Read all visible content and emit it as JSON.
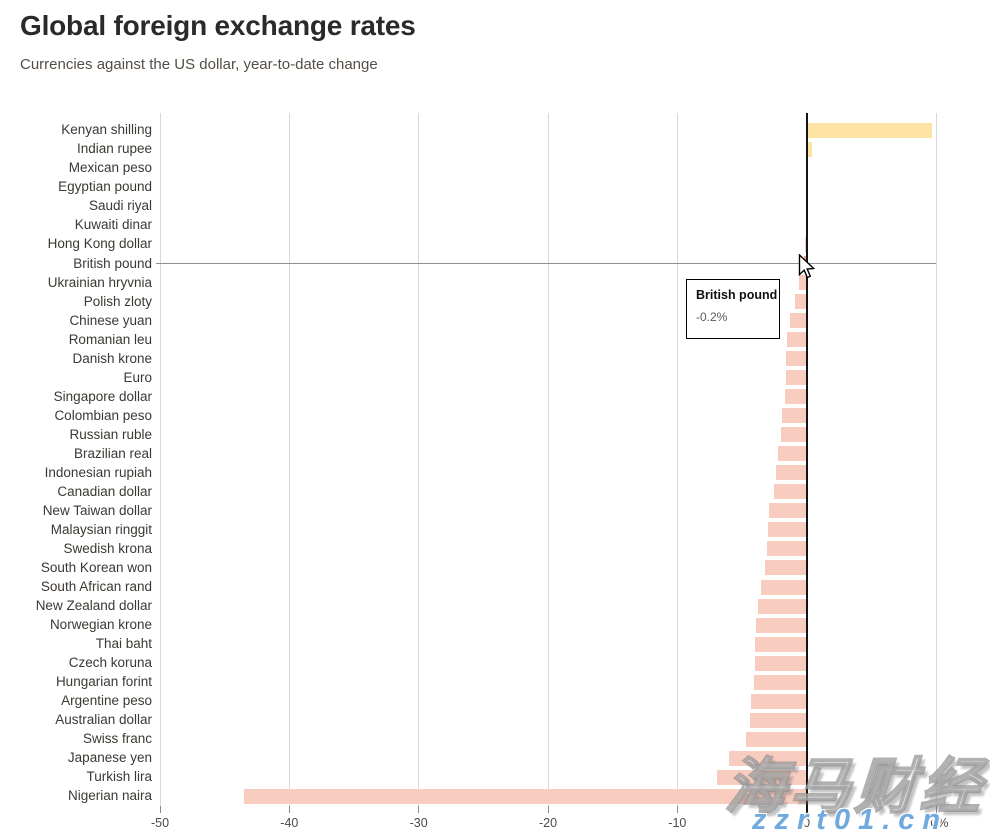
{
  "header": {
    "title": "Global foreign exchange rates",
    "subtitle": "Currencies against the US dollar, year-to-date change"
  },
  "chart_data": {
    "type": "bar",
    "orientation": "horizontal",
    "title": "Global foreign exchange rates",
    "subtitle": "Currencies against the US dollar, year-to-date change",
    "xlim": [
      -50,
      10
    ],
    "x_ticks": [
      -50,
      -40,
      -30,
      -20,
      -10,
      0,
      10
    ],
    "x_tick_labels": [
      "-50",
      "-40",
      "-30",
      "-20",
      "-10",
      "0",
      "10%"
    ],
    "grid": "vertical",
    "legend": "none",
    "categories": [
      "Kenyan shilling",
      "Indian rupee",
      "Mexican peso",
      "Egyptian pound",
      "Saudi riyal",
      "Kuwaiti dinar",
      "Hong Kong dollar",
      "British pound",
      "Ukrainian hryvnia",
      "Polish zloty",
      "Chinese yuan",
      "Romanian leu",
      "Danish krone",
      "Euro",
      "Singapore dollar",
      "Colombian peso",
      "Russian ruble",
      "Brazilian real",
      "Indonesian rupiah",
      "Canadian dollar",
      "New Taiwan dollar",
      "Malaysian ringgit",
      "Swedish krona",
      "South Korean won",
      "South African rand",
      "New Zealand dollar",
      "Norwegian krone",
      "Thai baht",
      "Czech koruna",
      "Hungarian forint",
      "Argentine peso",
      "Australian dollar",
      "Swiss franc",
      "Japanese yen",
      "Turkish lira",
      "Nigerian naira"
    ],
    "values": [
      9.7,
      0.4,
      0.1,
      0.0,
      0.0,
      0.0,
      -0.1,
      -0.2,
      -0.6,
      -0.9,
      -1.3,
      -1.5,
      -1.6,
      -1.6,
      -1.7,
      -1.9,
      -2.0,
      -2.2,
      -2.4,
      -2.5,
      -2.9,
      -3.0,
      -3.1,
      -3.2,
      -3.5,
      -3.8,
      -3.9,
      -4.0,
      -4.0,
      -4.1,
      -4.3,
      -4.4,
      -4.7,
      -6.0,
      -6.9,
      -43.5
    ],
    "colors": {
      "positive": "#fce3a3",
      "negative": "#f9ccc0",
      "highlight": "#ef9e88"
    },
    "highlighted_category": "British pound"
  },
  "tooltip": {
    "title": "British pound",
    "value": "-0.2%"
  },
  "watermark": {
    "main": "海马财经",
    "sub": "zzrt01.cn"
  }
}
